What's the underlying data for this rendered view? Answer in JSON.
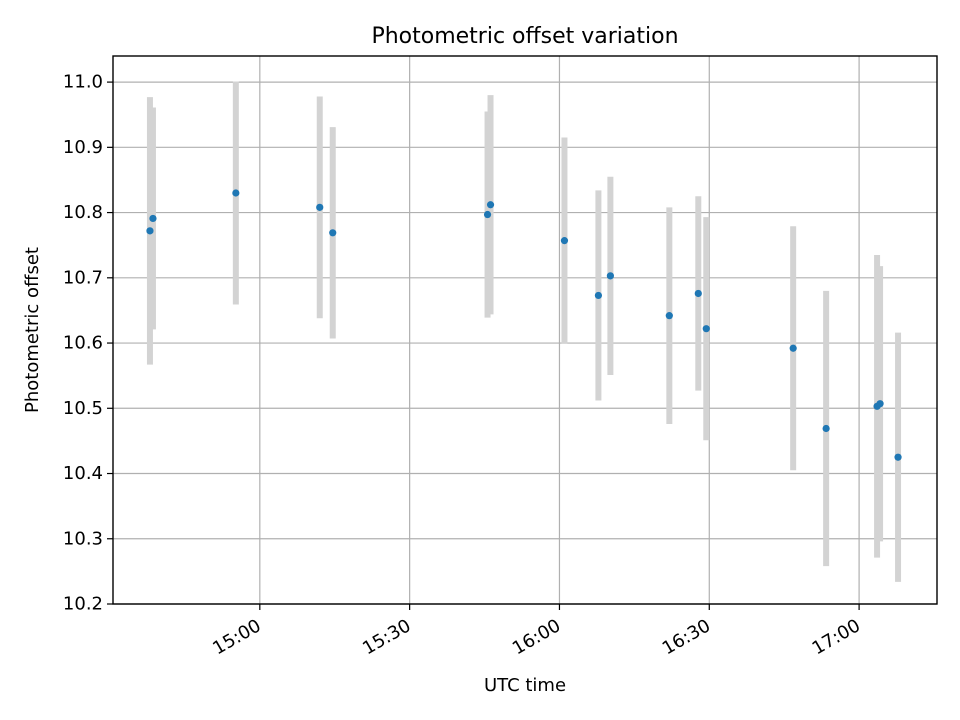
{
  "chart_data": {
    "type": "scatter",
    "title": "Photometric offset variation",
    "xlabel": "UTC time",
    "ylabel": "Photometric offset",
    "x_ticks": [
      "15:00",
      "15:30",
      "16:00",
      "16:30",
      "17:00"
    ],
    "y_ticks": [
      "10.2",
      "10.3",
      "10.4",
      "10.5",
      "10.6",
      "10.7",
      "10.8",
      "10.9",
      "11.0"
    ],
    "xlim": [
      "14:30:36",
      "17:15:36"
    ],
    "ylim": [
      10.2,
      11.04
    ],
    "grid": true,
    "error_bar_color": "#d3d3d3",
    "point_color": "#1f77b4",
    "points": [
      {
        "x": "14:38:00",
        "y": 10.772,
        "ylow": 10.567,
        "yhigh": 10.977
      },
      {
        "x": "14:38:36",
        "y": 10.791,
        "ylow": 10.621,
        "yhigh": 10.961
      },
      {
        "x": "14:55:12",
        "y": 10.83,
        "ylow": 10.659,
        "yhigh": 11.001
      },
      {
        "x": "15:12:00",
        "y": 10.808,
        "ylow": 10.638,
        "yhigh": 10.978
      },
      {
        "x": "15:14:36",
        "y": 10.769,
        "ylow": 10.607,
        "yhigh": 10.931
      },
      {
        "x": "15:45:36",
        "y": 10.797,
        "ylow": 10.639,
        "yhigh": 10.955
      },
      {
        "x": "15:46:12",
        "y": 10.812,
        "ylow": 10.644,
        "yhigh": 10.98
      },
      {
        "x": "16:01:00",
        "y": 10.757,
        "ylow": 10.599,
        "yhigh": 10.915
      },
      {
        "x": "16:07:48",
        "y": 10.673,
        "ylow": 10.512,
        "yhigh": 10.834
      },
      {
        "x": "16:10:12",
        "y": 10.703,
        "ylow": 10.551,
        "yhigh": 10.855
      },
      {
        "x": "16:22:00",
        "y": 10.642,
        "ylow": 10.476,
        "yhigh": 10.808
      },
      {
        "x": "16:27:48",
        "y": 10.676,
        "ylow": 10.527,
        "yhigh": 10.825
      },
      {
        "x": "16:29:24",
        "y": 10.622,
        "ylow": 10.451,
        "yhigh": 10.793
      },
      {
        "x": "16:46:48",
        "y": 10.592,
        "ylow": 10.405,
        "yhigh": 10.779
      },
      {
        "x": "16:53:24",
        "y": 10.469,
        "ylow": 10.258,
        "yhigh": 10.68
      },
      {
        "x": "17:03:36",
        "y": 10.503,
        "ylow": 10.271,
        "yhigh": 10.735
      },
      {
        "x": "17:04:12",
        "y": 10.507,
        "ylow": 10.296,
        "yhigh": 10.718
      },
      {
        "x": "17:07:48",
        "y": 10.425,
        "ylow": 10.234,
        "yhigh": 10.616
      }
    ]
  }
}
